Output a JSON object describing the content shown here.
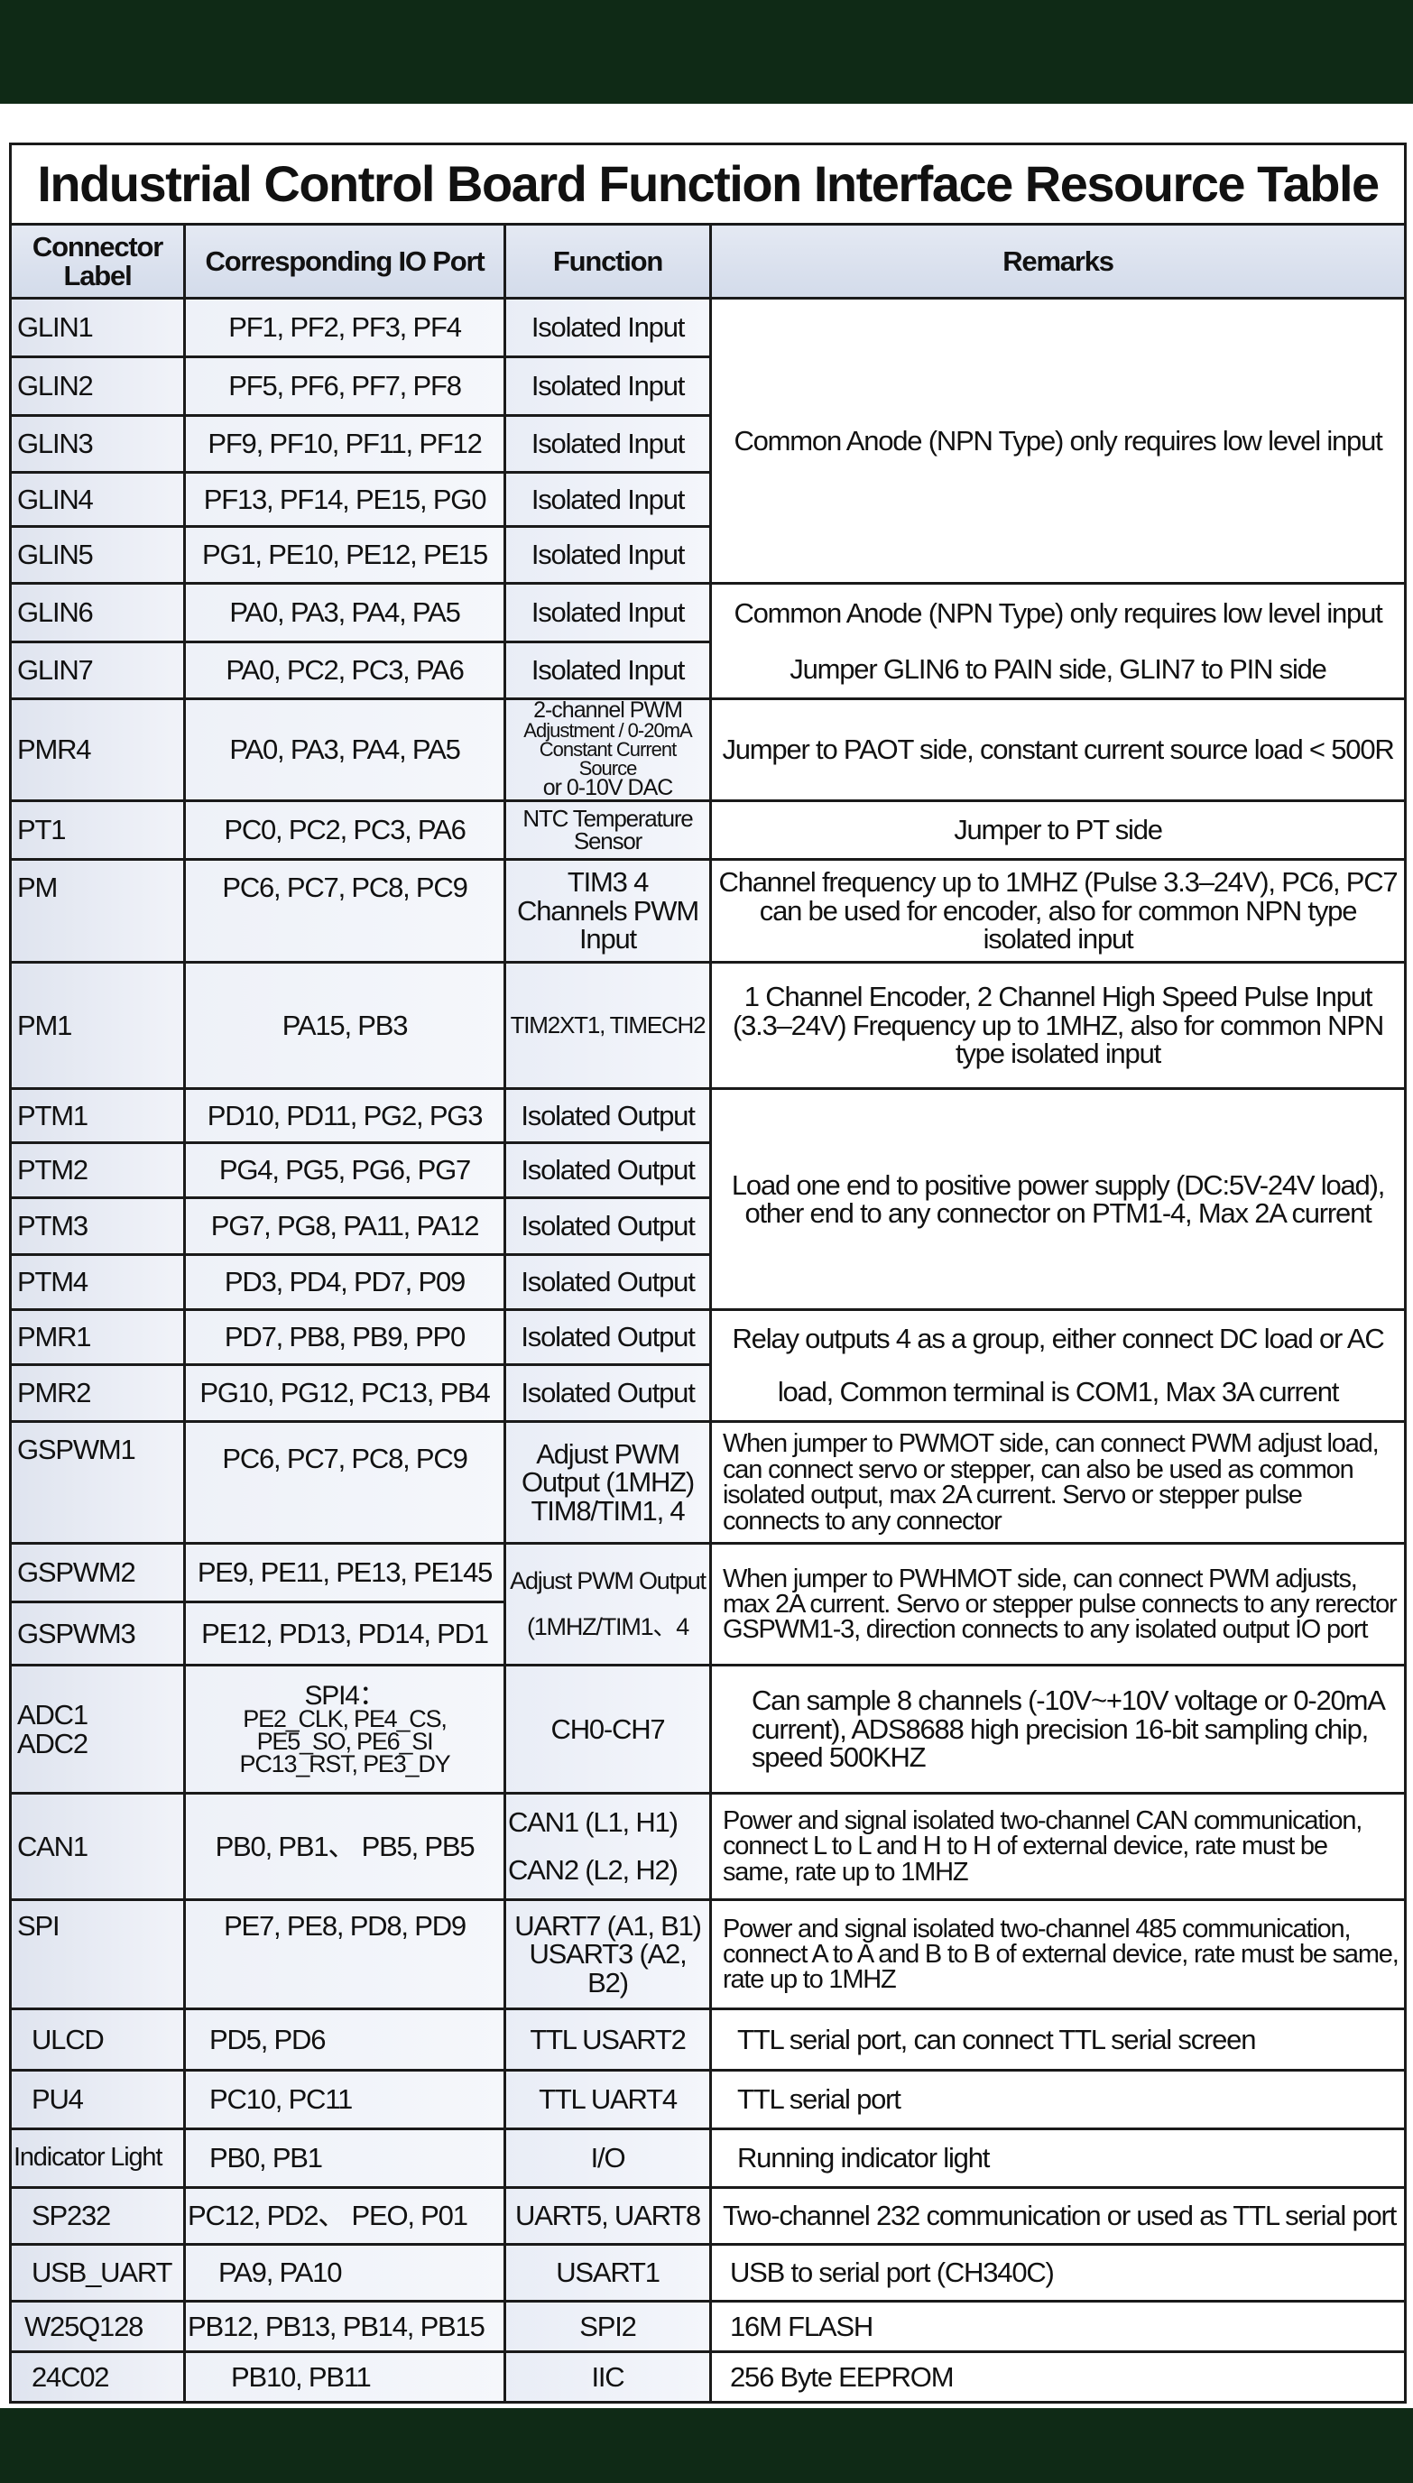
{
  "title": "Industrial Control Board Function Interface Resource Table",
  "headers": {
    "label": "Connector Label",
    "io": "Corresponding IO Port",
    "function": "Function",
    "remarks": "Remarks"
  },
  "colors": {
    "band": "#0f2a16",
    "cell": "#e4e9f3",
    "border": "#1a1a1a"
  },
  "rows": [
    {
      "label": "GLIN1",
      "io": "PF1, PF2, PF3, PF4",
      "function": "Isolated Input"
    },
    {
      "label": "GLIN2",
      "io": "PF5, PF6, PF7, PF8",
      "function": "Isolated Input"
    },
    {
      "label": "GLIN3",
      "io": "PF9, PF10, PF11, PF12",
      "function": "Isolated Input"
    },
    {
      "label": "GLIN4",
      "io": "PF13, PF14, PE15, PG0",
      "function": "Isolated Input"
    },
    {
      "label": "GLIN5",
      "io": "PG1, PE10, PE12, PE15",
      "function": "Isolated Input"
    },
    {
      "label": "GLIN6",
      "io": "PA0, PA3, PA4, PA5",
      "function": "Isolated Input"
    },
    {
      "label": "GLIN7",
      "io": "PA0, PC2, PC3, PA6",
      "function": "Isolated Input"
    },
    {
      "label": "PMR4",
      "io": "PA0, PA3, PA4, PA5",
      "function": [
        "2-channel PWM",
        "Adjustment / 0-20mA",
        "Constant Current Source",
        "or 0-10V DAC"
      ]
    },
    {
      "label": "PT1",
      "io": "PC0, PC2, PC3, PA6",
      "function": "NTC Temperature Sensor"
    },
    {
      "label": "PM",
      "io": "PC6, PC7, PC8, PC9",
      "function": "TIM3 4 Channels PWM Input"
    },
    {
      "label": "PM1",
      "io": "PA15, PB3",
      "function": "TIM2XT1, TIMECH2"
    },
    {
      "label": "PTM1",
      "io": "PD10, PD11, PG2, PG3",
      "function": "Isolated Output"
    },
    {
      "label": "PTM2",
      "io": "PG4, PG5, PG6, PG7",
      "function": "Isolated Output"
    },
    {
      "label": "PTM3",
      "io": "PG7, PG8, PA11, PA12",
      "function": "Isolated Output"
    },
    {
      "label": "PTM4",
      "io": "PD3, PD4, PD7, P09",
      "function": "Isolated Output"
    },
    {
      "label": "PMR1",
      "io": "PD7, PB8, PB9, PP0",
      "function": "Isolated Output"
    },
    {
      "label": "PMR2",
      "io": "PG10, PG12, PC13, PB4",
      "function": "Isolated Output"
    },
    {
      "label": "GSPWM1",
      "io": "PC6, PC7, PC8, PC9",
      "function": "Adjust PWM Output (1MHZ) TIM8/TIM1, 4"
    },
    {
      "label": "GSPWM2",
      "io": "PE9, PE11, PE13, PE145"
    },
    {
      "label": "GSPWM3",
      "io": "PE12, PD13, PD14, PD1"
    },
    {
      "label": [
        "ADC1",
        "ADC2"
      ],
      "io": [
        "SPI4：",
        "PE2_CLK, PE4_CS,",
        "PE5_SO, PE6_SI",
        "PC13_RST, PE3_DY"
      ],
      "function": "CH0-CH7"
    },
    {
      "label": "CAN1",
      "io": "PB0, PB1、 PB5, PB5",
      "function": [
        "CAN1 (L1, H1)",
        "CAN2 (L2, H2)"
      ]
    },
    {
      "label": "SPI",
      "io": "PE7, PE8, PD8, PD9",
      "function": [
        "UART7 (A1, B1)",
        "USART3 (A2, B2)"
      ]
    },
    {
      "label": "ULCD",
      "io": "PD5, PD6",
      "function": "TTL USART2",
      "remarks": "TTL serial port, can connect TTL serial screen"
    },
    {
      "label": "PU4",
      "io": "PC10, PC11",
      "function": "TTL UART4",
      "remarks": "TTL serial port"
    },
    {
      "label": "Indicator Light",
      "io": "PB0, PB1",
      "function": "I/O",
      "remarks": "Running indicator light"
    },
    {
      "label": "SP232",
      "io": "PC12, PD2、 PEO, P01",
      "function": "UART5, UART8",
      "remarks": "Two-channel 232 communication or used as TTL serial port"
    },
    {
      "label": "USB_UART",
      "io": "PA9, PA10",
      "function": "USART1",
      "remarks": "USB to serial port (CH340C)"
    },
    {
      "label": "W25Q128",
      "io": "PB12, PB13, PB14, PB15",
      "function": "SPI2",
      "remarks": "16M FLASH"
    },
    {
      "label": "24C02",
      "io": "PB10, PB11",
      "function": "IIC",
      "remarks": "256 Byte EEPROM"
    }
  ],
  "group_remarks": {
    "glin1_5": "Common Anode (NPN Type) only requires low level input",
    "glin6": "Common Anode (NPN Type) only requires low level input",
    "glin7": "Jumper GLIN6 to PAIN side, GLIN7 to PIN side",
    "pmr4": "Jumper to PAOT side, constant current source load < 500R",
    "pt1": "Jumper to PT side",
    "pm": "Channel frequency up to 1MHZ (Pulse 3.3–24V), PC6, PC7 can be used for encoder, also for common NPN type isolated input",
    "pm1": "1 Channel Encoder, 2 Channel High Speed Pulse Input (3.3–24V) Frequency up to 1MHZ, also for common NPN type isolated input",
    "ptm": "Load one end to positive power supply (DC:5V-24V load), other end to any connector on PTM1-4, Max 2A current",
    "pmr": "Relay outputs 4 as a group, either connect DC load or AC load, Common terminal is COM1, Max 3A current",
    "gspwm1": "When jumper to PWMOT side, can connect PWM adjust load, can connect servo or stepper, can also be used as common isolated output, max 2A current. Servo or stepper pulse connects to any connector",
    "gspwm23_function": [
      "Adjust PWM Output",
      "(1MHZ/TIM1、4"
    ],
    "gspwm23": "When jumper to PWHMOT side, can connect PWM adjusts, max 2A current. Servo or stepper pulse connects to any rerector GSPWM1-3, direction connects to any isolated output IO port",
    "adc": "Can sample 8 channels (-10V~+10V voltage or 0-20mA current), ADS8688 high precision 16-bit sampling chip, speed 500KHZ",
    "can": "Power and signal isolated two-channel CAN communication, connect L to L and H to H of external device, rate must be same, rate up to 1MHZ",
    "spi": "Power and signal isolated two-channel 485 communication, connect A to A and B to B of external device, rate must be same, rate up to 1MHZ"
  }
}
